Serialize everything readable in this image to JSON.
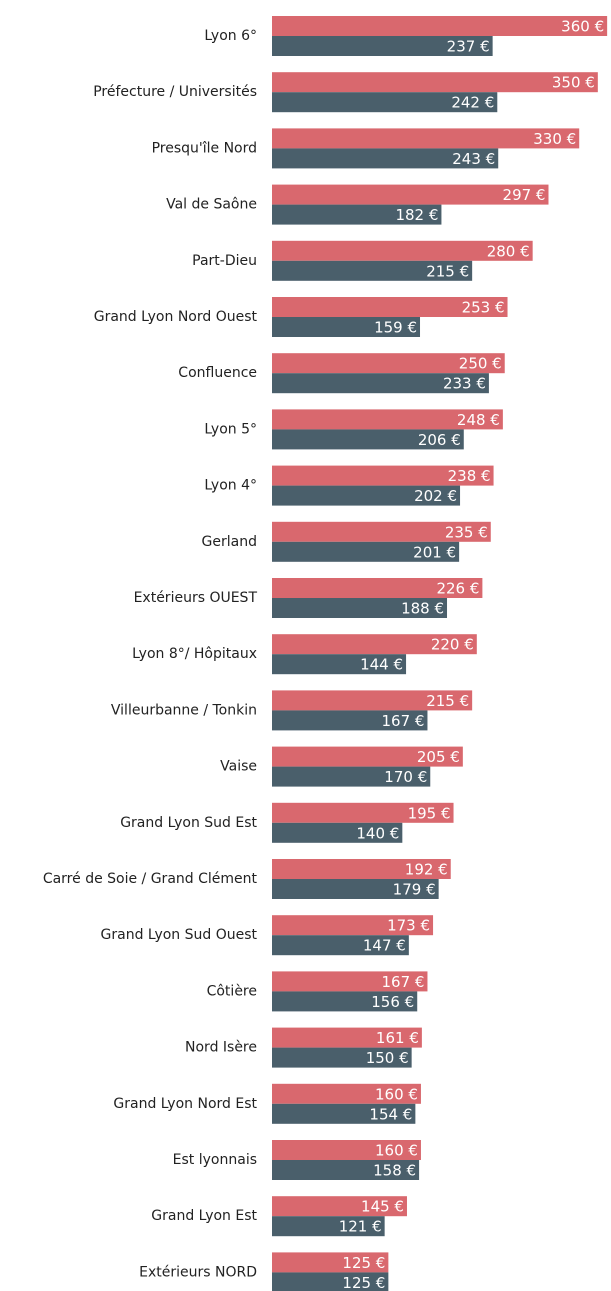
{
  "chart_data": {
    "type": "bar",
    "orientation": "horizontal",
    "categories": [
      "Lyon 6°",
      "Préfecture / Universités",
      "Presqu'île Nord",
      "Val de Saône",
      "Part-Dieu",
      "Grand Lyon Nord Ouest",
      "Confluence",
      "Lyon 5°",
      "Lyon 4°",
      "Gerland",
      "Extérieurs OUEST",
      "Lyon 8°/ Hôpitaux",
      "Villeurbanne / Tonkin",
      "Vaise",
      "Grand Lyon Sud Est",
      "Carré de Soie / Grand Clément",
      "Grand Lyon Sud Ouest",
      "Côtière",
      "Nord Isère",
      "Grand Lyon Nord Est",
      "Est lyonnais",
      "Grand Lyon Est",
      "Extérieurs NORD"
    ],
    "series": [
      {
        "color": "#d9686e",
        "values": [
          360,
          350,
          330,
          297,
          280,
          253,
          250,
          248,
          238,
          235,
          226,
          220,
          215,
          205,
          195,
          192,
          173,
          167,
          161,
          160,
          160,
          145,
          125
        ],
        "value_labels": [
          "360 €",
          "350 €",
          "330 €",
          "297 €",
          "280 €",
          "253 €",
          "250 €",
          "248 €",
          "238 €",
          "235 €",
          "226 €",
          "220 €",
          "215 €",
          "205 €",
          "195 €",
          "192 €",
          "173 €",
          "167 €",
          "161 €",
          "160 €",
          "160 €",
          "145 €",
          "125 €"
        ]
      },
      {
        "color": "#4a5f6b",
        "values": [
          237,
          242,
          243,
          182,
          215,
          159,
          233,
          206,
          202,
          201,
          188,
          144,
          167,
          170,
          140,
          179,
          147,
          156,
          150,
          154,
          158,
          121,
          125
        ],
        "value_labels": [
          "237 €",
          "242 €",
          "243 €",
          "182 €",
          "215 €",
          "159 €",
          "233 €",
          "206 €",
          "202 €",
          "201 €",
          "188 €",
          "144 €",
          "167 €",
          "170 €",
          "140 €",
          "179 €",
          "147 €",
          "156 €",
          "150 €",
          "154 €",
          "158 €",
          "121 €",
          "125 €"
        ]
      }
    ],
    "xlim": [
      0,
      362
    ]
  }
}
